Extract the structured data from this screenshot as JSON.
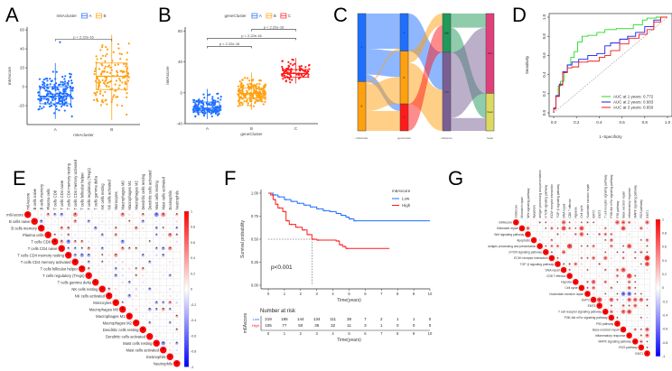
{
  "panels": {
    "a": "A",
    "b": "B",
    "c": "C",
    "d": "D",
    "e": "E",
    "f": "F",
    "g": "G"
  },
  "chart_data": [
    {
      "panel": "A",
      "type": "box",
      "title": "",
      "xlabel": "m6Acluster",
      "ylabel": "m6Ascore",
      "legend_title": "m6Acluster",
      "legend_placement": "top",
      "ylim": [
        -40,
        63
      ],
      "yticks": [
        -20,
        0,
        20,
        40,
        60
      ],
      "groups": [
        {
          "name": "A",
          "color": "#1f6fff",
          "n": 200,
          "median": -10,
          "q1": -18,
          "q3": 0,
          "lo": -34,
          "hi": 25,
          "max_outlier": 47
        },
        {
          "name": "B",
          "color": "#ffa010",
          "n": 150,
          "median": 11,
          "q1": -3,
          "q3": 25,
          "lo": -35,
          "hi": 55
        }
      ],
      "comparisons": [
        {
          "a": 0,
          "b": 1,
          "y": 50,
          "label": "p < 2.22e-16"
        }
      ]
    },
    {
      "panel": "B",
      "type": "box",
      "title": "",
      "xlabel": "geneCluster",
      "ylabel": "m6Ascore",
      "legend_title": "geneCluster",
      "legend_placement": "top",
      "ylim": [
        -40,
        85
      ],
      "yticks": [
        -40,
        0,
        40,
        80
      ],
      "groups": [
        {
          "name": "A",
          "color": "#1f6fff",
          "n": 150,
          "median": -20,
          "q1": -25,
          "q3": -12,
          "lo": -34,
          "hi": 5
        },
        {
          "name": "B",
          "color": "#ffa010",
          "n": 200,
          "median": -1,
          "q1": -7,
          "q3": 6,
          "lo": -22,
          "hi": 26
        },
        {
          "name": "C",
          "color": "#ff1a1a",
          "n": 90,
          "median": 25,
          "q1": 20,
          "q3": 30,
          "lo": 12,
          "hi": 45
        }
      ],
      "comparisons": [
        {
          "a": 0,
          "b": 1,
          "y": 60,
          "label": "p < 2.22e-16"
        },
        {
          "a": 0,
          "b": 2,
          "y": 70.5,
          "label": "p < 2.22e-16"
        },
        {
          "a": 1,
          "b": 2,
          "y": 82,
          "label": "p < 2.22e-16"
        }
      ]
    },
    {
      "panel": "C",
      "type": "sankey",
      "columns": [
        {
          "label": "m6Acluster",
          "nodes": [
            {
              "name": "A",
              "color": "#1f6fff",
              "value": 58
            },
            {
              "name": "B",
              "color": "#ffa010",
              "value": 42
            }
          ]
        },
        {
          "label": "geneCluster",
          "nodes": [
            {
              "name": "A",
              "color": "#1f6fff",
              "value": 32
            },
            {
              "name": "B",
              "color": "#ffa010",
              "value": 45
            },
            {
              "name": "C",
              "color": "#ff1a1a",
              "value": 23
            }
          ]
        },
        {
          "label": "m6Ascore",
          "nodes": [
            {
              "name": "High",
              "color": "#1f9a5a",
              "value": 33
            },
            {
              "name": "Low",
              "color": "#7a5f95",
              "value": 67
            }
          ]
        },
        {
          "label": "fustat",
          "nodes": [
            {
              "name": "Alive",
              "color": "#e0407a",
              "value": 68
            },
            {
              "name": "Dead",
              "color": "#dcd860",
              "value": 32
            }
          ]
        }
      ],
      "flows": [
        [
          0,
          0,
          0,
          30
        ],
        [
          0,
          0,
          1,
          22
        ],
        [
          0,
          0,
          2,
          6
        ],
        [
          0,
          1,
          0,
          2
        ],
        [
          0,
          1,
          1,
          23
        ],
        [
          0,
          1,
          2,
          17
        ],
        [
          1,
          0,
          1,
          32
        ],
        [
          1,
          1,
          0,
          10
        ],
        [
          1,
          1,
          1,
          35
        ],
        [
          1,
          2,
          0,
          23
        ],
        [
          2,
          0,
          0,
          12
        ],
        [
          2,
          0,
          1,
          21
        ],
        [
          2,
          1,
          0,
          56
        ],
        [
          2,
          1,
          1,
          11
        ]
      ]
    },
    {
      "panel": "D",
      "type": "line",
      "xlabel": "1−Specificity",
      "ylabel": "Sensitivity",
      "xlim": [
        0,
        1
      ],
      "ylim": [
        0,
        1
      ],
      "ticks": [
        "0.0",
        "0.2",
        "0.4",
        "0.6",
        "0.8",
        "1.0"
      ],
      "legend_placement": "bottom-right",
      "series": [
        {
          "name": "AUC at 1 years: 0.772",
          "color": "#22dd22",
          "x": [
            0,
            0.02,
            0.04,
            0.06,
            0.09,
            0.12,
            0.15,
            0.18,
            0.21,
            0.25,
            0.3,
            0.38,
            0.45,
            0.55,
            0.7,
            0.78,
            0.82,
            0.9,
            0.96,
            1
          ],
          "y": [
            0,
            0.05,
            0.18,
            0.28,
            0.33,
            0.42,
            0.5,
            0.58,
            0.64,
            0.74,
            0.8,
            0.81,
            0.84,
            0.87,
            0.88,
            0.92,
            0.97,
            0.99,
            1,
            1
          ]
        },
        {
          "name": "AUC at 2 years: 0.683",
          "color": "#1a1aee",
          "x": [
            0,
            0.02,
            0.05,
            0.08,
            0.12,
            0.16,
            0.22,
            0.3,
            0.38,
            0.45,
            0.5,
            0.58,
            0.65,
            0.72,
            0.8,
            0.88,
            0.94,
            1
          ],
          "y": [
            0,
            0.05,
            0.18,
            0.3,
            0.43,
            0.5,
            0.53,
            0.56,
            0.6,
            0.62,
            0.7,
            0.73,
            0.77,
            0.8,
            0.84,
            0.9,
            0.97,
            1
          ]
        },
        {
          "name": "AUC at 3 years: 0.650",
          "color": "#ee1a1a",
          "x": [
            0,
            0.02,
            0.05,
            0.08,
            0.12,
            0.16,
            0.22,
            0.3,
            0.4,
            0.45,
            0.5,
            0.58,
            0.66,
            0.75,
            0.82,
            0.88,
            0.94,
            1
          ],
          "y": [
            0,
            0.04,
            0.17,
            0.29,
            0.42,
            0.47,
            0.48,
            0.53,
            0.54,
            0.58,
            0.6,
            0.65,
            0.72,
            0.78,
            0.82,
            0.87,
            0.95,
            1
          ]
        }
      ]
    },
    {
      "panel": "E",
      "type": "heatmap",
      "labels": [
        "m6Ascore",
        "B cells naive",
        "B cells memory",
        "Plasma cells",
        "T cells CD8",
        "T cells CD4 naive",
        "T cells CD4 memory resting",
        "T cells CD4 memory activated",
        "T cells follicular helper",
        "T cells regulatory (Tregs)",
        "T cells gamma delta",
        "NK cells resting",
        "NK cells activated",
        "Monocytes",
        "Macrophages M0",
        "Macrophages M1",
        "Macrophages M2",
        "Dendritic cells resting",
        "Dendritic cells activated",
        "Mast cells resting",
        "Mast cells activated",
        "Eosinophils",
        "Neutrophils"
      ],
      "colorbar_ticks": [
        "1",
        "0.8",
        "0.6",
        "0.4",
        "0.2",
        "0",
        "-0.2",
        "-0.4",
        "-0.6",
        "-0.8",
        "-1"
      ],
      "range": [
        -1,
        1
      ],
      "notable": [
        [
          0,
          5,
          -0.3
        ],
        [
          0,
          7,
          0.45
        ],
        [
          0,
          14,
          0.4
        ],
        [
          0,
          19,
          -0.45
        ],
        [
          0,
          20,
          0.45
        ],
        [
          1,
          2,
          -0.3
        ],
        [
          2,
          6,
          0.3
        ],
        [
          4,
          6,
          -0.4
        ],
        [
          4,
          7,
          0.25
        ],
        [
          4,
          8,
          0.25
        ],
        [
          4,
          14,
          -0.35
        ],
        [
          6,
          8,
          -0.35
        ],
        [
          6,
          9,
          -0.3
        ],
        [
          19,
          20,
          -0.4
        ],
        [
          13,
          21,
          0.3
        ]
      ]
    },
    {
      "panel": "F",
      "type": "line",
      "xlabel": "Time(years)",
      "ylabel": "Survival probability",
      "xlim": [
        0,
        10
      ],
      "ylim": [
        0,
        1
      ],
      "xticks": [
        "0",
        "1",
        "2",
        "3",
        "4",
        "5",
        "6",
        "7",
        "8",
        "9",
        "10"
      ],
      "yticks": [
        "0.00",
        "0.25",
        "0.50",
        "0.75",
        "1.00"
      ],
      "legend_title": "m6Ascore",
      "legend_placement": "top-right",
      "annotation": "p<0.001",
      "median_high": 2.7,
      "series": [
        {
          "name": "Low",
          "color": "#1f6fff",
          "x": [
            0,
            0.3,
            0.6,
            1,
            1.4,
            1.8,
            2.2,
            2.6,
            3,
            3.4,
            3.8,
            4.2,
            4.5,
            4.8,
            5,
            5.3,
            10
          ],
          "y": [
            1,
            0.98,
            0.96,
            0.93,
            0.91,
            0.89,
            0.87,
            0.85,
            0.83,
            0.81,
            0.8,
            0.78,
            0.76,
            0.74,
            0.72,
            0.7,
            0.7
          ]
        },
        {
          "name": "High",
          "color": "#ff1a1a",
          "x": [
            0,
            0.15,
            0.3,
            0.45,
            0.6,
            0.9,
            1.1,
            1.3,
            1.7,
            2.1,
            2.4,
            2.7,
            3,
            4.2,
            4.4,
            4.6,
            4.8,
            7.5
          ],
          "y": [
            1,
            0.98,
            0.93,
            0.88,
            0.84,
            0.8,
            0.7,
            0.66,
            0.63,
            0.6,
            0.55,
            0.5,
            0.49,
            0.48,
            0.44,
            0.42,
            0.4,
            0.4
          ]
        }
      ],
      "risk_table": {
        "title": "Number at risk",
        "ylabel": "m6Ascore",
        "xlabel": "Time(years)",
        "rows": [
          {
            "name": "Low",
            "color": "#1f6fff",
            "values": [
              "219",
              "185",
              "144",
              "134",
              "111",
              "38",
              "7",
              "2",
              "1",
              "1",
              "0"
            ]
          },
          {
            "name": "High",
            "color": "#ff1a1a",
            "values": [
              "105",
              "77",
              "50",
              "35",
              "32",
              "11",
              "3",
              "1",
              "0",
              "0",
              "0"
            ]
          }
        ]
      }
    },
    {
      "panel": "G",
      "type": "heatmap",
      "labels": [
        "m6Ascore",
        "Mismatch repair",
        "Wnt signaling pathway",
        "Apoptosis",
        "antigen processing and presentation",
        "mTOR signaling pathway",
        "ECM−receptor interaction",
        "TGF−β signaling pathway",
        "DNA repair",
        "CD8 T effector",
        "Hypoxia",
        "Cell cycle",
        "Nucleotide excision repair",
        "EMT2",
        "EMT3",
        "T cell receptor signaling pathway",
        "PI3K Akt mTor signaling pathway",
        "P53 pathway",
        "Base excision repair",
        "Inflammatory response",
        "MAPK signaling pathway",
        "ROS pathway",
        "EMT1"
      ],
      "colorbar_ticks": [
        "1",
        "0.8",
        "0.6",
        "0.4",
        "0.2",
        "0",
        "-0.2",
        "-0.4",
        "-0.6",
        "-0.8",
        "-1"
      ],
      "range": [
        -1,
        1
      ],
      "notable": [
        [
          0,
          8,
          0.5
        ],
        [
          1,
          8,
          0.6
        ],
        [
          1,
          11,
          0.6
        ],
        [
          1,
          18,
          0.6
        ],
        [
          4,
          9,
          0.7
        ],
        [
          4,
          19,
          0.6
        ],
        [
          6,
          22,
          0.8
        ],
        [
          7,
          22,
          0.6
        ],
        [
          8,
          18,
          0.6
        ],
        [
          9,
          19,
          0.7
        ],
        [
          12,
          18,
          -0.5
        ],
        [
          12,
          19,
          -0.5
        ],
        [
          13,
          14,
          0.7
        ],
        [
          15,
          19,
          0.6
        ]
      ]
    }
  ]
}
